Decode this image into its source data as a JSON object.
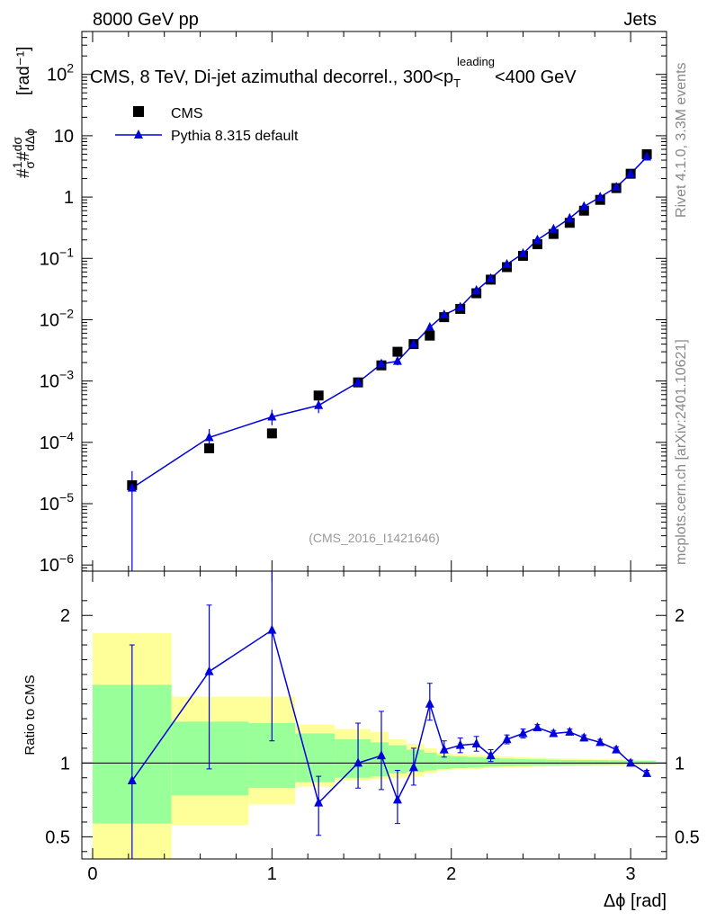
{
  "header": {
    "left": "8000 GeV pp",
    "right": "Jets"
  },
  "side_labels": {
    "rivet": "Rivet 4.1.0,  3.3M events",
    "mcplots": "mcplots.cern.ch [arXiv:2401.10621]"
  },
  "chart_data": {
    "type": "scatter",
    "title_main": "CMS, 8 TeV, Di-jet azimuthal decorrel., 300<p",
    "title_sub": "T",
    "title_sup": "leading",
    "title_tail": "<400 GeV",
    "reference": "(CMS_2016_I1421646)",
    "xlabel": "Δϕ [rad]",
    "ylabel_top": "[rad⁻¹]",
    "ylabel_bottom": "Ratio to CMS",
    "xlim": [
      -0.06,
      3.2
    ],
    "ylim_top_log10": [
      -6.1,
      2.7
    ],
    "ylim_bottom": [
      0.35,
      2.3
    ],
    "x_ticks": [
      "0",
      "1",
      "2",
      "3"
    ],
    "y_ticks_top": [
      {
        "base": "10",
        "exp": "2",
        "v": 2
      },
      {
        "base": "10",
        "exp": "",
        "v": 1
      },
      {
        "base": "1",
        "exp": "",
        "v": 0
      },
      {
        "base": "10",
        "exp": "−1",
        "v": -1
      },
      {
        "base": "10",
        "exp": "−2",
        "v": -2
      },
      {
        "base": "10",
        "exp": "−3",
        "v": -3
      },
      {
        "base": "10",
        "exp": "−4",
        "v": -4
      },
      {
        "base": "10",
        "exp": "−5",
        "v": -5
      },
      {
        "base": "10",
        "exp": "−6",
        "v": -6
      }
    ],
    "y_ticks_bottom": [
      {
        "label": "0.5",
        "v": 0.5
      },
      {
        "label": "1",
        "v": 1
      },
      {
        "label": "2",
        "v": 2
      }
    ],
    "legend": {
      "position": "top-left",
      "entries": [
        {
          "name": "CMS",
          "marker": "square",
          "color": "#000000"
        },
        {
          "name": "Pythia 8.315 default",
          "marker": "triangle",
          "color": "#0000dd"
        }
      ]
    },
    "series": [
      {
        "name": "CMS",
        "x": [
          0.22,
          0.65,
          1.0,
          1.26,
          1.48,
          1.61,
          1.7,
          1.79,
          1.88,
          1.96,
          2.05,
          2.14,
          2.22,
          2.31,
          2.4,
          2.48,
          2.57,
          2.66,
          2.74,
          2.83,
          2.92,
          3.0,
          3.09
        ],
        "y": [
          2e-05,
          8e-05,
          0.00014,
          0.00058,
          0.00095,
          0.0018,
          0.003,
          0.004,
          0.0055,
          0.011,
          0.015,
          0.027,
          0.045,
          0.072,
          0.11,
          0.17,
          0.25,
          0.38,
          0.6,
          0.9,
          1.4,
          2.4,
          5.0
        ]
      },
      {
        "name": "Pythia 8.315 default",
        "x": [
          0.22,
          0.65,
          1.0,
          1.26,
          1.48,
          1.61,
          1.7,
          1.79,
          1.88,
          1.96,
          2.05,
          2.14,
          2.22,
          2.31,
          2.4,
          2.48,
          2.57,
          2.66,
          2.74,
          2.83,
          2.92,
          3.0,
          3.09
        ],
        "y": [
          1.8e-05,
          0.00012,
          0.00026,
          0.0004,
          0.00095,
          0.0019,
          0.0021,
          0.004,
          0.0075,
          0.012,
          0.016,
          0.03,
          0.047,
          0.08,
          0.12,
          0.2,
          0.3,
          0.45,
          0.7,
          1.0,
          1.45,
          2.4,
          4.5
        ],
        "y_err_low": [
          1.8e-05,
          4e-05,
          7e-05,
          0.0001,
          0.00015,
          0.0003,
          0.0003,
          0.0005,
          0.0007,
          0.001,
          0.0012,
          0.002,
          0.0025,
          0.003,
          0.004,
          0.005,
          0.006,
          0.008,
          0.01,
          0.012,
          0.015,
          0.02,
          0.03
        ],
        "y_err_high": [
          1.6e-05,
          4.5e-05,
          8e-05,
          0.0001,
          0.00015,
          0.0003,
          0.0003,
          0.0005,
          0.0007,
          0.001,
          0.0012,
          0.002,
          0.0025,
          0.003,
          0.004,
          0.005,
          0.006,
          0.008,
          0.01,
          0.012,
          0.015,
          0.02,
          0.03
        ]
      }
    ],
    "ratio": {
      "x": [
        0.22,
        0.65,
        1.0,
        1.26,
        1.48,
        1.61,
        1.7,
        1.79,
        1.88,
        1.96,
        2.05,
        2.14,
        2.22,
        2.31,
        2.4,
        2.48,
        2.57,
        2.66,
        2.74,
        2.83,
        2.92,
        3.0,
        3.09
      ],
      "y": [
        0.88,
        1.62,
        1.9,
        0.73,
        1.0,
        1.05,
        0.75,
        0.97,
        1.4,
        1.09,
        1.12,
        1.13,
        1.05,
        1.16,
        1.2,
        1.24,
        1.2,
        1.21,
        1.17,
        1.14,
        1.09,
        1.0,
        0.93
      ],
      "err_low": [
        0.53,
        0.66,
        0.75,
        0.22,
        0.17,
        0.23,
        0.16,
        0.12,
        0.11,
        0.05,
        0.05,
        0.05,
        0.04,
        0.03,
        0.03,
        0.02,
        0.02,
        0.02,
        0.02,
        0.02,
        0.02,
        0.02,
        0.02
      ],
      "err_high": [
        0.92,
        0.45,
        0.52,
        0.18,
        0.27,
        0.3,
        0.2,
        0.13,
        0.14,
        0.06,
        0.05,
        0.05,
        0.04,
        0.03,
        0.03,
        0.02,
        0.02,
        0.02,
        0.02,
        0.02,
        0.02,
        0.02,
        0.02
      ]
    },
    "bands": {
      "edges": [
        0.0,
        0.44,
        0.87,
        1.13,
        1.35,
        1.55,
        1.65,
        1.75,
        1.85,
        1.92,
        2.0,
        2.09,
        2.18,
        2.27,
        2.35,
        2.44,
        2.53,
        2.61,
        2.7,
        2.79,
        2.88,
        2.96,
        3.05,
        3.14
      ],
      "stat_low": [
        0.59,
        0.78,
        0.83,
        0.87,
        0.9,
        0.91,
        0.93,
        0.94,
        0.95,
        0.96,
        0.965,
        0.97,
        0.975,
        0.978,
        0.98,
        0.982,
        0.984,
        0.985,
        0.986,
        0.987,
        0.988,
        0.989,
        0.99
      ],
      "stat_high": [
        1.53,
        1.28,
        1.27,
        1.2,
        1.16,
        1.14,
        1.12,
        1.09,
        1.07,
        1.05,
        1.045,
        1.04,
        1.035,
        1.03,
        1.027,
        1.025,
        1.023,
        1.021,
        1.02,
        1.019,
        1.018,
        1.016,
        1.015
      ],
      "tot_low": [
        0.35,
        0.58,
        0.72,
        0.84,
        0.88,
        0.89,
        0.9,
        0.91,
        0.93,
        0.95,
        0.955,
        0.96,
        0.965,
        0.97,
        0.972,
        0.975,
        0.977,
        0.979,
        0.98,
        0.982,
        0.983,
        0.985,
        0.987
      ],
      "tot_high": [
        1.88,
        1.45,
        1.45,
        1.26,
        1.23,
        1.21,
        1.16,
        1.13,
        1.1,
        1.07,
        1.06,
        1.055,
        1.05,
        1.045,
        1.04,
        1.036,
        1.033,
        1.03,
        1.028,
        1.026,
        1.024,
        1.022,
        1.02
      ]
    }
  },
  "colors": {
    "mc": "#0000dd",
    "data": "#000000",
    "band_total": "#ffff99",
    "band_stat": "#99ff99",
    "side_text": "#888888"
  }
}
